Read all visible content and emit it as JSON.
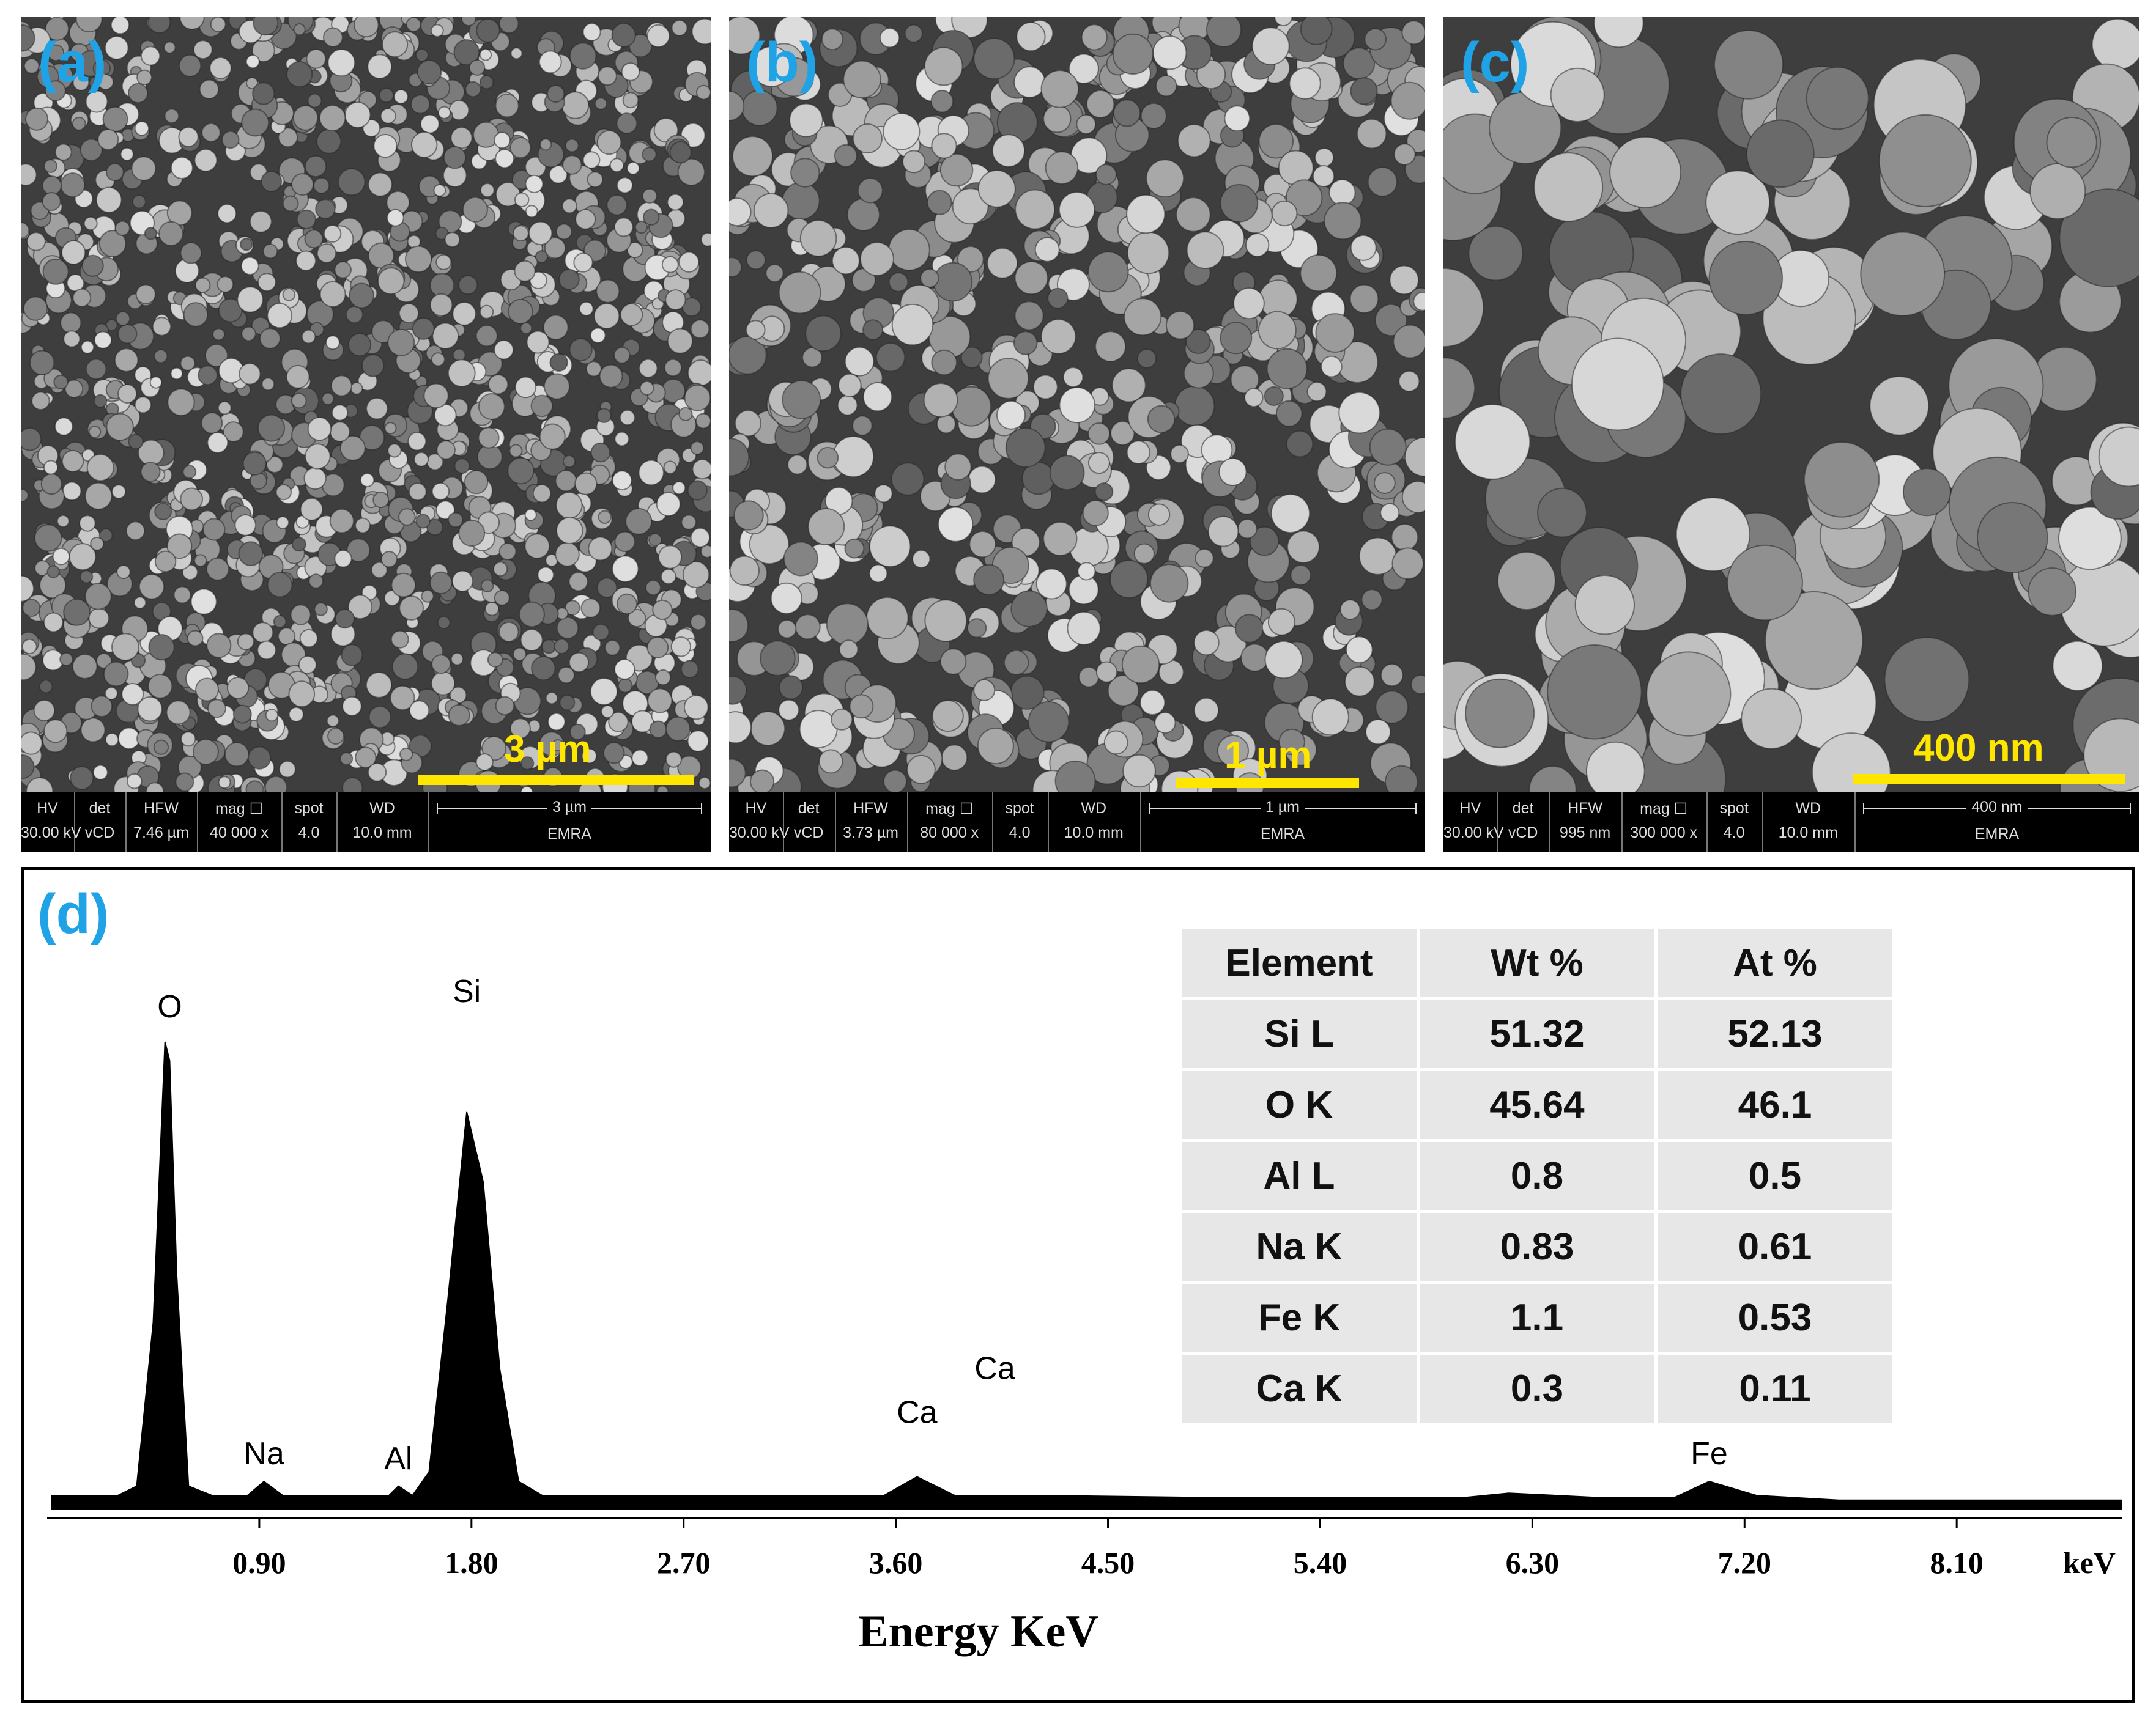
{
  "panels": [
    {
      "letter": "(a)",
      "scale_label": "3 µm",
      "databar": {
        "headers": [
          "HV",
          "det",
          "HFW",
          "mag ☐",
          "spot",
          "WD"
        ],
        "values": [
          "30.00 kV",
          "vCD",
          "7.46 µm",
          "40 000 x",
          "4.0",
          "10.0 mm"
        ],
        "scale_text": "3 µm",
        "operator": "EMRA"
      }
    },
    {
      "letter": "(b)",
      "scale_label": "1 µm",
      "databar": {
        "headers": [
          "HV",
          "det",
          "HFW",
          "mag ☐",
          "spot",
          "WD"
        ],
        "values": [
          "30.00 kV",
          "vCD",
          "3.73 µm",
          "80 000 x",
          "4.0",
          "10.0 mm"
        ],
        "scale_text": "1 µm",
        "operator": "EMRA"
      }
    },
    {
      "letter": "(c)",
      "scale_label": "400 nm",
      "databar": {
        "headers": [
          "HV",
          "det",
          "HFW",
          "mag ☐",
          "spot",
          "WD"
        ],
        "values": [
          "30.00 kV",
          "vCD",
          "995 nm",
          "300 000 x",
          "4.0",
          "10.0 mm"
        ],
        "scale_text": "400 nm",
        "operator": "EMRA"
      }
    }
  ],
  "colors": {
    "panel_letter": "#1fa3e6",
    "scale_bar": "#ffe600",
    "spectrum": "#000000"
  },
  "eds": {
    "letter": "(d)",
    "table": {
      "headers": [
        "Element",
        "Wt %",
        "At %"
      ],
      "rows": [
        [
          "Si L",
          "51.32",
          "52.13"
        ],
        [
          "O K",
          "45.64",
          "46.1"
        ],
        [
          "Al L",
          "0.8",
          "0.5"
        ],
        [
          "Na K",
          "0.83",
          "0.61"
        ],
        [
          "Fe K",
          "1.1",
          "0.53"
        ],
        [
          "Ca K",
          "0.3",
          "0.11"
        ]
      ]
    }
  },
  "chart_data": {
    "type": "line",
    "xlabel": "Energy KeV",
    "x_unit_label": "keV",
    "x_ticks": [
      "0.90",
      "1.80",
      "2.70",
      "3.60",
      "4.50",
      "5.40",
      "6.30",
      "7.20",
      "8.10"
    ],
    "xlim": [
      0,
      8.8
    ],
    "ylim": [
      0,
      100
    ],
    "grid": false,
    "series": [
      {
        "values_x": [
          0.02,
          0.3,
          0.38,
          0.45,
          0.5,
          0.52,
          0.55,
          0.6,
          0.7,
          0.85,
          0.92,
          1.0,
          1.2,
          1.45,
          1.49,
          1.55,
          1.62,
          1.7,
          1.78,
          1.85,
          1.92,
          2.0,
          2.1,
          2.5,
          3.0,
          3.55,
          3.69,
          3.85,
          4.2,
          5.0,
          6.0,
          6.2,
          6.6,
          6.9,
          7.05,
          7.25,
          7.6,
          8.8
        ],
        "values_y": [
          3,
          3,
          5,
          40,
          100,
          96,
          50,
          5,
          3,
          3,
          6,
          3,
          3,
          3,
          5,
          3,
          8,
          45,
          85,
          70,
          30,
          6,
          3,
          3,
          3,
          3,
          7,
          3,
          3,
          2.5,
          2.5,
          3.5,
          2.5,
          2.5,
          6,
          3,
          2,
          2
        ]
      }
    ],
    "peak_labels": [
      {
        "text": "O",
        "x": 0.52,
        "y": 100
      },
      {
        "text": "Na",
        "x": 0.92,
        "y": 6
      },
      {
        "text": "Al",
        "x": 1.49,
        "y": 5
      },
      {
        "text": "Si",
        "x": 1.78,
        "y": 85
      },
      {
        "text": "Ca",
        "x": 3.69,
        "y": 7
      },
      {
        "text": "Ca",
        "x": 4.02,
        "y": 7
      },
      {
        "text": "Fe",
        "x": 7.05,
        "y": 6
      }
    ]
  }
}
